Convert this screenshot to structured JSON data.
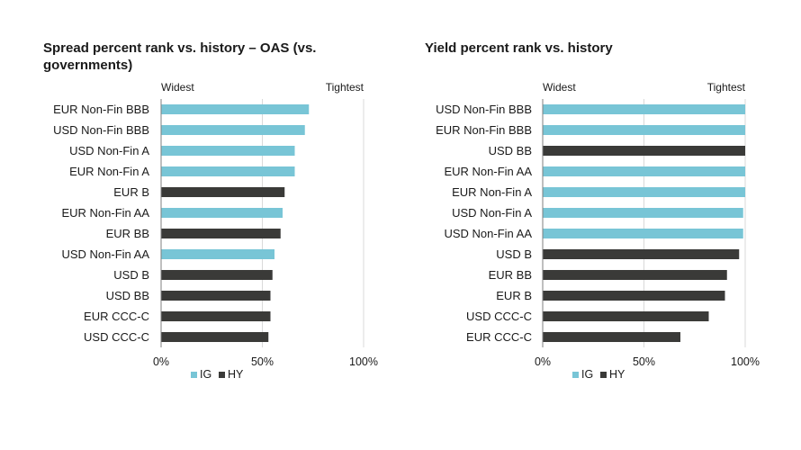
{
  "colors": {
    "IG": "#78c5d6",
    "HY": "#3a3a38",
    "axis": "#7f7f7f",
    "grid": "#d9d9d9"
  },
  "chart_data": [
    {
      "type": "bar",
      "orientation": "horizontal",
      "title": "Spread percent rank vs. history – OAS (vs. governments)",
      "xlabel": "",
      "ylabel": "",
      "xlim": [
        0,
        100
      ],
      "x_ticks": [
        "0%",
        "50%",
        "100%"
      ],
      "x_tick_values": [
        0,
        50,
        100
      ],
      "end_labels": {
        "left": "Widest",
        "right": "Tightest"
      },
      "legend": [
        {
          "name": "IG"
        },
        {
          "name": "HY"
        }
      ],
      "legend_position": "bottom-left",
      "grid": true,
      "bars": [
        {
          "category": "EUR Non-Fin BBB",
          "value": 73,
          "group": "IG"
        },
        {
          "category": "USD Non-Fin BBB",
          "value": 71,
          "group": "IG"
        },
        {
          "category": "USD Non-Fin A",
          "value": 66,
          "group": "IG"
        },
        {
          "category": "EUR Non-Fin A",
          "value": 66,
          "group": "IG"
        },
        {
          "category": "EUR B",
          "value": 61,
          "group": "HY"
        },
        {
          "category": "EUR Non-Fin AA",
          "value": 60,
          "group": "IG"
        },
        {
          "category": "EUR BB",
          "value": 59,
          "group": "HY"
        },
        {
          "category": "USD Non-Fin AA",
          "value": 56,
          "group": "IG"
        },
        {
          "category": "USD B",
          "value": 55,
          "group": "HY"
        },
        {
          "category": "USD BB",
          "value": 54,
          "group": "HY"
        },
        {
          "category": "EUR CCC-C",
          "value": 54,
          "group": "HY"
        },
        {
          "category": "USD CCC-C",
          "value": 53,
          "group": "HY"
        }
      ]
    },
    {
      "type": "bar",
      "orientation": "horizontal",
      "title": "Yield percent rank vs. history",
      "xlabel": "",
      "ylabel": "",
      "xlim": [
        0,
        100
      ],
      "x_ticks": [
        "0%",
        "50%",
        "100%"
      ],
      "x_tick_values": [
        0,
        50,
        100
      ],
      "end_labels": {
        "left": "Widest",
        "right": "Tightest"
      },
      "legend": [
        {
          "name": "IG"
        },
        {
          "name": "HY"
        }
      ],
      "legend_position": "bottom-left",
      "grid": true,
      "bars": [
        {
          "category": "USD Non-Fin BBB",
          "value": 100,
          "group": "IG"
        },
        {
          "category": "EUR Non-Fin BBB",
          "value": 100,
          "group": "IG"
        },
        {
          "category": "USD BB",
          "value": 100,
          "group": "HY"
        },
        {
          "category": "EUR Non-Fin AA",
          "value": 100,
          "group": "IG"
        },
        {
          "category": "EUR Non-Fin A",
          "value": 100,
          "group": "IG"
        },
        {
          "category": "USD Non-Fin A",
          "value": 99,
          "group": "IG"
        },
        {
          "category": "USD Non-Fin AA",
          "value": 99,
          "group": "IG"
        },
        {
          "category": "USD B",
          "value": 97,
          "group": "HY"
        },
        {
          "category": "EUR BB",
          "value": 91,
          "group": "HY"
        },
        {
          "category": "EUR B",
          "value": 90,
          "group": "HY"
        },
        {
          "category": "USD CCC-C",
          "value": 82,
          "group": "HY"
        },
        {
          "category": "EUR CCC-C",
          "value": 68,
          "group": "HY"
        }
      ]
    }
  ]
}
